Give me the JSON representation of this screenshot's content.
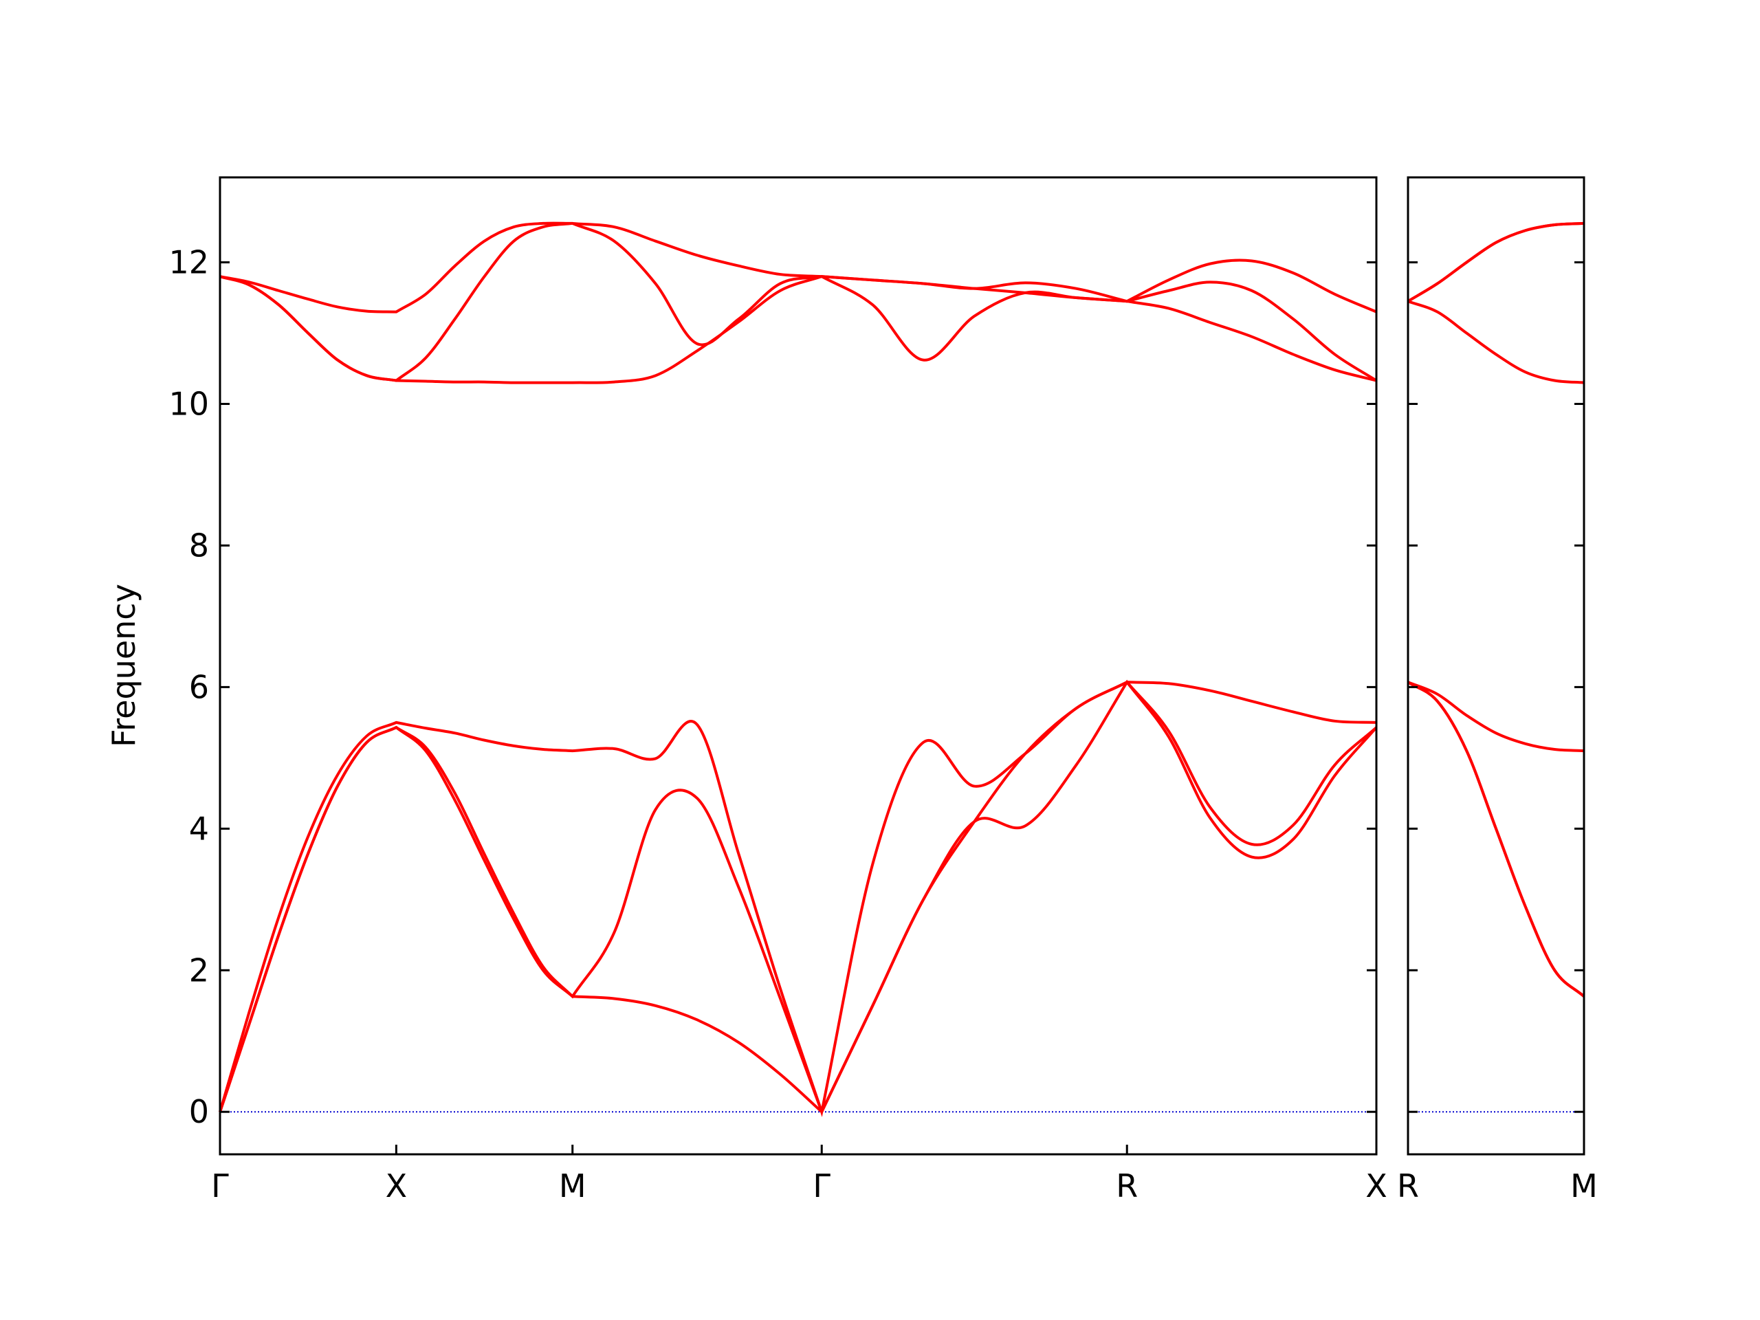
{
  "chart_data": [
    {
      "type": "line",
      "ylabel": "Frequency",
      "color": "#ff0000",
      "hline": 0,
      "hline_color": "#0000cd",
      "show_ytick_labels": true,
      "xlim": [
        0,
        6.561
      ],
      "ylim": [
        -0.6,
        13.2
      ],
      "xticks": [
        {
          "value": 0,
          "label": "Γ"
        },
        {
          "value": 1,
          "label": "X"
        },
        {
          "value": 2,
          "label": "M"
        },
        {
          "value": 3.414,
          "label": "Γ"
        },
        {
          "value": 5.146,
          "label": "R"
        },
        {
          "value": 6.561,
          "label": "X"
        }
      ],
      "yticks": [
        0,
        2,
        4,
        6,
        8,
        10,
        12
      ],
      "x": [
        0,
        0.167,
        0.333,
        0.5,
        0.667,
        0.833,
        1,
        1.167,
        1.333,
        1.5,
        1.667,
        1.833,
        2,
        2.236,
        2.471,
        2.707,
        2.943,
        3.179,
        3.414,
        3.703,
        3.991,
        4.28,
        4.569,
        4.858,
        5.146,
        5.382,
        5.618,
        5.854,
        6.089,
        6.325,
        6.561
      ],
      "series": [
        {
          "values": [
            0,
            1.25,
            2.5,
            3.65,
            4.6,
            5.22,
            5.43,
            5.1,
            4.4,
            3.55,
            2.72,
            2.0,
            1.63,
            1.6,
            1.5,
            1.3,
            0.98,
            0.53,
            0,
            1.5,
            3.0,
            4.1,
            4.04,
            4.9,
            6.07,
            5.3,
            4.15,
            3.6,
            3.85,
            4.75,
            5.43
          ]
        },
        {
          "values": [
            0,
            1.25,
            2.5,
            3.65,
            4.6,
            5.22,
            5.43,
            5.15,
            4.5,
            3.64,
            2.8,
            2.05,
            1.63,
            2.53,
            4.27,
            4.43,
            3.17,
            1.6,
            0,
            1.5,
            3.0,
            4.1,
            5.06,
            5.7,
            6.07,
            5.38,
            4.3,
            3.78,
            4.05,
            4.9,
            5.43
          ]
        },
        {
          "values": [
            0,
            1.42,
            2.75,
            3.89,
            4.76,
            5.31,
            5.5,
            5.42,
            5.35,
            5.25,
            5.17,
            5.12,
            5.1,
            5.13,
            4.99,
            5.47,
            3.64,
            1.74,
            0,
            3.5,
            5.22,
            4.6,
            5.06,
            5.7,
            6.07,
            6.05,
            5.95,
            5.8,
            5.65,
            5.52,
            5.5
          ]
        },
        {
          "values": [
            11.8,
            11.68,
            11.4,
            11.0,
            10.62,
            10.4,
            10.33,
            10.32,
            10.31,
            10.31,
            10.3,
            10.3,
            10.3,
            10.31,
            10.4,
            10.75,
            11.16,
            11.6,
            11.8,
            11.4,
            10.62,
            11.24,
            11.57,
            11.5,
            11.45,
            11.35,
            11.15,
            10.95,
            10.7,
            10.48,
            10.33
          ]
        },
        {
          "values": [
            11.8,
            11.68,
            11.4,
            11.0,
            10.62,
            10.4,
            10.33,
            10.65,
            11.2,
            11.8,
            12.3,
            12.5,
            12.55,
            12.3,
            11.7,
            10.85,
            11.2,
            11.7,
            11.8,
            11.75,
            11.7,
            11.63,
            11.57,
            11.5,
            11.45,
            11.6,
            11.72,
            11.6,
            11.2,
            10.7,
            10.33
          ]
        },
        {
          "values": [
            11.8,
            11.72,
            11.6,
            11.48,
            11.37,
            11.31,
            11.3,
            11.55,
            11.95,
            12.3,
            12.5,
            12.55,
            12.55,
            12.5,
            12.3,
            12.1,
            11.95,
            11.83,
            11.8,
            11.75,
            11.7,
            11.63,
            11.71,
            11.63,
            11.45,
            11.75,
            11.98,
            12.02,
            11.85,
            11.55,
            11.3
          ]
        }
      ]
    },
    {
      "type": "line",
      "color": "#ff0000",
      "hline": 0,
      "hline_color": "#0000cd",
      "show_ytick_labels": false,
      "xlim": [
        0,
        1
      ],
      "ylim": [
        -0.6,
        13.2
      ],
      "xticks": [
        {
          "value": 0,
          "label": "R"
        },
        {
          "value": 1,
          "label": "M"
        }
      ],
      "yticks": [
        0,
        2,
        4,
        6,
        8,
        10,
        12
      ],
      "x": [
        0,
        0.167,
        0.333,
        0.5,
        0.667,
        0.833,
        1
      ],
      "series": [
        {
          "values": [
            6.07,
            5.8,
            5.1,
            4.0,
            2.9,
            2.0,
            1.63
          ]
        },
        {
          "values": [
            6.07,
            5.8,
            5.1,
            4.0,
            2.9,
            2.0,
            1.63
          ]
        },
        {
          "values": [
            6.07,
            5.9,
            5.6,
            5.35,
            5.2,
            5.12,
            5.1
          ]
        },
        {
          "values": [
            11.45,
            11.3,
            11.0,
            10.7,
            10.45,
            10.33,
            10.3
          ]
        },
        {
          "values": [
            11.45,
            11.7,
            12.0,
            12.28,
            12.45,
            12.53,
            12.55
          ]
        },
        {
          "values": [
            11.45,
            11.7,
            12.0,
            12.28,
            12.45,
            12.53,
            12.55
          ]
        }
      ]
    }
  ]
}
